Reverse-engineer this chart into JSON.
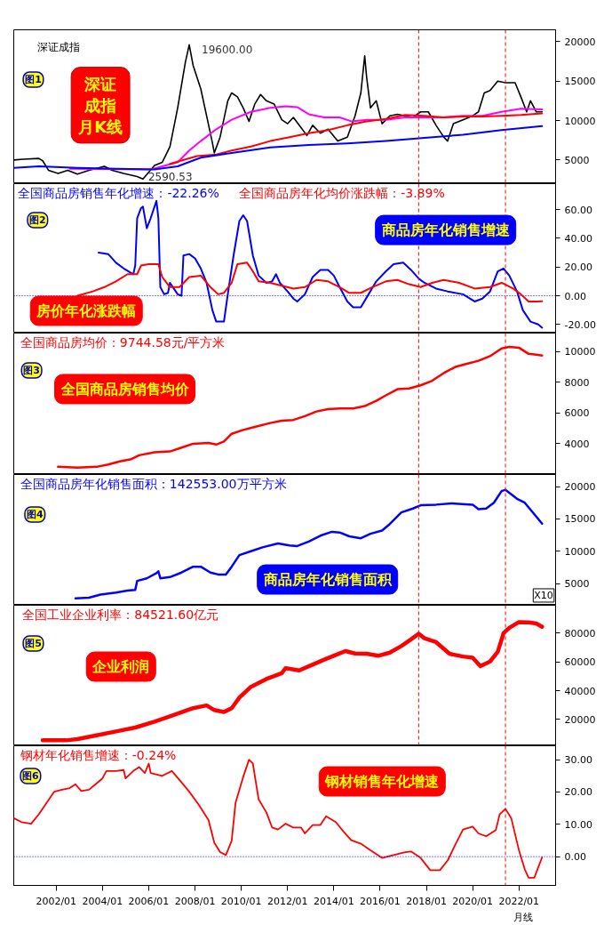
{
  "chart_data": [
    {
      "type": "line",
      "legend": "top left",
      "tick_labels": "y",
      "xlim": [
        "2000-03",
        "2023-08"
      ],
      "ylim": [
        2000,
        21500
      ],
      "yticks": [
        5000,
        10000,
        15000,
        20000
      ],
      "series": [
        {
          "name": "深证成指",
          "color": "#000000",
          "x": [
            "2000-03",
            "2000-08",
            "2001-04",
            "2001-06",
            "2001-09",
            "2002-02",
            "2002-07",
            "2002-12",
            "2003-06",
            "2004-02",
            "2004-06",
            "2004-12",
            "2005-07",
            "2005-10",
            "2006-04",
            "2006-08",
            "2006-12",
            "2007-04",
            "2007-08",
            "2007-10",
            "2007-12",
            "2008-04",
            "2008-07",
            "2008-10",
            "2008-11",
            "2009-02",
            "2009-06",
            "2009-08",
            "2009-11",
            "2010-02",
            "2010-05",
            "2010-08",
            "2010-11",
            "2011-02",
            "2011-06",
            "2011-10",
            "2012-01",
            "2012-04",
            "2012-08",
            "2012-11",
            "2013-02",
            "2013-06",
            "2013-10",
            "2014-03",
            "2014-08",
            "2014-12",
            "2015-03",
            "2015-05",
            "2015-06",
            "2015-08",
            "2015-11",
            "2016-02",
            "2016-06",
            "2016-10",
            "2017-02",
            "2017-06",
            "2017-10",
            "2018-02",
            "2018-06",
            "2018-10",
            "2018-12",
            "2019-03",
            "2019-08",
            "2020-01",
            "2020-04",
            "2020-07",
            "2020-10",
            "2021-02",
            "2021-06",
            "2021-11",
            "2022-02",
            "2022-05",
            "2022-07",
            "2022-10",
            "2023-01"
          ],
          "values": [
            5000,
            5100,
            5200,
            4900,
            3700,
            3300,
            3700,
            3200,
            3700,
            4200,
            3700,
            3300,
            2900,
            2590.53,
            4300,
            4700,
            6700,
            11600,
            17400,
            19600,
            17000,
            14000,
            10600,
            7200,
            5900,
            7900,
            12500,
            13500,
            13000,
            11600,
            9900,
            12100,
            13300,
            12500,
            12100,
            10100,
            9600,
            10400,
            9100,
            8100,
            9400,
            8400,
            8900,
            7400,
            7900,
            10600,
            13500,
            18200,
            15500,
            11600,
            12500,
            9600,
            10600,
            10800,
            10600,
            10400,
            11100,
            11100,
            9400,
            7900,
            7400,
            9600,
            10100,
            10600,
            11100,
            13500,
            13800,
            15000,
            14800,
            14800,
            13000,
            11100,
            12500,
            11100,
            11100
          ]
        },
        {
          "color": "#ff00ff",
          "x": [
            "2002-08",
            "2006-02",
            "2007-04",
            "2007-10",
            "2008-04",
            "2008-12",
            "2009-08",
            "2010-06",
            "2011-04",
            "2011-12",
            "2012-06",
            "2012-12",
            "2013-08",
            "2014-04",
            "2014-10",
            "2015-06",
            "2016-04",
            "2017-02",
            "2017-12",
            "2018-10",
            "2019-08",
            "2020-06",
            "2021-04",
            "2022-02",
            "2023-01"
          ],
          "values": [
            3900,
            3800,
            4700,
            6200,
            7400,
            8900,
            10100,
            11100,
            11600,
            11800,
            11700,
            10800,
            10400,
            10400,
            9900,
            10100,
            10100,
            10400,
            10400,
            10400,
            10600,
            10600,
            11100,
            11500,
            11400
          ]
        },
        {
          "color": "#ff0000",
          "x": [
            "2006-12",
            "2008-02",
            "2008-12",
            "2009-08",
            "2010-06",
            "2011-04",
            "2012-02",
            "2012-12",
            "2013-10",
            "2014-08",
            "2015-06",
            "2016-04",
            "2017-02",
            "2017-12",
            "2018-10",
            "2019-08",
            "2020-06",
            "2021-04",
            "2022-02",
            "2023-01"
          ],
          "values": [
            4500,
            5500,
            5700,
            6200,
            6700,
            7400,
            7900,
            8400,
            8800,
            9400,
            9900,
            10200,
            10700,
            10600,
            10400,
            10500,
            10500,
            10600,
            10700,
            10900
          ]
        },
        {
          "color": "#0000ff",
          "x": [
            "2000-03",
            "2001-04",
            "2002-12",
            "2004-08",
            "2006-04",
            "2007-04",
            "2008-04",
            "2009-08",
            "2011-04",
            "2012-12",
            "2014-08",
            "2016-04",
            "2017-12",
            "2019-08",
            "2021-04",
            "2023-01"
          ],
          "values": [
            4000,
            4200,
            4000,
            3900,
            3800,
            4200,
            5300,
            5900,
            6600,
            6900,
            7100,
            7400,
            7800,
            8200,
            8800,
            9300
          ]
        }
      ],
      "ref_lines": [
        {
          "axis": "x",
          "value": "2017-09",
          "color": "#ff0000",
          "line_style": "dashed"
        },
        {
          "axis": "x",
          "value": "2021-06",
          "color": "#ff0000",
          "line_style": "dashed"
        }
      ],
      "annotations": [
        "图1",
        "深证成指月K线",
        {
          "text": "19600.00",
          "x": "2007-10",
          "y": 19600
        },
        {
          "text": "2590.53",
          "x": "2005-10",
          "y": 2590.53
        }
      ]
    },
    {
      "type": "line",
      "legend": "top left",
      "tick_labels": "y",
      "xlim": [
        "2000-03",
        "2023-08"
      ],
      "ylim": [
        -26,
        78
      ],
      "yticks": [
        {
          "value": -20,
          "label": "-20.00"
        },
        {
          "value": 0,
          "label": "0.00"
        },
        {
          "value": 20,
          "label": "20.00"
        },
        {
          "value": 40,
          "label": "40.00"
        },
        {
          "value": 60,
          "label": "60.00"
        }
      ],
      "series": [
        {
          "name": "全国商品房销售年化增速：-22.26%",
          "color": "#0000ff",
          "x": [
            "2003-11",
            "2004-04",
            "2004-08",
            "2004-12",
            "2005-05",
            "2005-06",
            "2005-07",
            "2005-09",
            "2005-10",
            "2005-12",
            "2006-02",
            "2006-05",
            "2006-06",
            "2006-07",
            "2006-09",
            "2006-11",
            "2006-12",
            "2007-02",
            "2007-04",
            "2007-06",
            "2007-07",
            "2007-10",
            "2008-01",
            "2008-04",
            "2008-07",
            "2008-10",
            "2008-12",
            "2009-04",
            "2009-06",
            "2009-09",
            "2009-12",
            "2010-02",
            "2010-04",
            "2010-07",
            "2010-10",
            "2011-02",
            "2011-05",
            "2011-07",
            "2011-09",
            "2012-01",
            "2012-04",
            "2012-06",
            "2012-10",
            "2013-02",
            "2013-06",
            "2013-10",
            "2014-01",
            "2014-04",
            "2014-08",
            "2014-11",
            "2015-03",
            "2015-07",
            "2015-11",
            "2016-04",
            "2016-08",
            "2017-01",
            "2017-05",
            "2017-09",
            "2017-12",
            "2018-06",
            "2018-12",
            "2019-08",
            "2020-02",
            "2020-06",
            "2020-10",
            "2021-02",
            "2021-05",
            "2021-08",
            "2021-12",
            "2022-03",
            "2022-07",
            "2022-11",
            "2023-01"
          ],
          "values": [
            30,
            29,
            23,
            19,
            15,
            21,
            54,
            61,
            62,
            47,
            54,
            66,
            54,
            6,
            1,
            2,
            9,
            5,
            1,
            0,
            28,
            29,
            26,
            19,
            9,
            -10,
            -18,
            -18,
            1,
            28,
            52,
            56,
            52,
            28,
            14,
            9,
            10,
            15,
            9,
            3,
            -2,
            -4,
            1,
            13,
            18,
            18,
            14,
            6,
            -4,
            -8,
            -8,
            1,
            10,
            17,
            22,
            23,
            18,
            12,
            9,
            5,
            3,
            1,
            -4,
            -2,
            3,
            17,
            19,
            14,
            3,
            -10,
            -18,
            -20,
            -22.26
          ]
        },
        {
          "name": "全国商品房年化均价涨跌幅：-3.89%",
          "color": "#ff0000",
          "x": [
            "2002-12",
            "2003-08",
            "2004-02",
            "2004-08",
            "2005-02",
            "2005-07",
            "2005-09",
            "2006-01",
            "2006-06",
            "2006-08",
            "2006-12",
            "2007-05",
            "2007-10",
            "2008-04",
            "2008-09",
            "2009-01",
            "2009-04",
            "2009-08",
            "2009-11",
            "2010-04",
            "2010-07",
            "2010-10",
            "2011-04",
            "2011-10",
            "2012-04",
            "2012-10",
            "2013-04",
            "2013-10",
            "2014-04",
            "2014-09",
            "2015-03",
            "2015-09",
            "2016-04",
            "2016-10",
            "2017-04",
            "2017-10",
            "2018-04",
            "2018-10",
            "2019-06",
            "2020-02",
            "2020-10",
            "2021-04",
            "2021-10",
            "2022-02",
            "2022-06",
            "2022-10",
            "2023-01"
          ],
          "values": [
            0,
            3,
            6,
            10,
            15,
            15,
            21,
            22,
            22,
            13,
            6,
            6,
            13,
            14,
            6,
            1,
            2,
            9,
            22,
            23,
            17,
            10,
            9,
            7,
            5,
            6,
            11,
            10,
            6,
            2,
            2,
            6,
            10,
            11,
            8,
            6,
            9,
            11,
            9,
            5,
            6,
            9,
            5,
            1,
            -4,
            -4,
            -3.89
          ]
        }
      ],
      "ref_lines": [
        {
          "axis": "y",
          "value": 0,
          "color": "#0000ff",
          "line_style": "dotted"
        },
        {
          "axis": "x",
          "value": "2017-09",
          "color": "#ff0000",
          "line_style": "dashed"
        },
        {
          "axis": "x",
          "value": "2021-06",
          "color": "#ff0000",
          "line_style": "dashed"
        }
      ],
      "annotations": [
        "图2",
        "商品房年化销售增速",
        "房价年化涨跌幅"
      ]
    },
    {
      "type": "line",
      "legend": "top left",
      "tick_labels": "y",
      "xlim": [
        "2000-03",
        "2023-08"
      ],
      "ylim": [
        2000,
        11200
      ],
      "yticks": [
        4000,
        6000,
        8000,
        10000
      ],
      "series": [
        {
          "name": "全国商品房均价：9744.58元/平方米",
          "color": "#ff0000",
          "x": [
            "2002-02",
            "2002-12",
            "2003-10",
            "2004-04",
            "2004-10",
            "2005-04",
            "2005-08",
            "2006-04",
            "2006-12",
            "2007-06",
            "2007-12",
            "2008-08",
            "2008-12",
            "2009-04",
            "2009-08",
            "2010-02",
            "2010-08",
            "2011-04",
            "2011-10",
            "2012-04",
            "2012-10",
            "2013-04",
            "2013-10",
            "2014-04",
            "2014-11",
            "2015-05",
            "2015-11",
            "2016-04",
            "2016-10",
            "2017-04",
            "2017-10",
            "2018-04",
            "2018-10",
            "2019-04",
            "2019-10",
            "2020-04",
            "2020-10",
            "2021-04",
            "2021-08",
            "2022-01",
            "2022-06",
            "2022-10",
            "2023-01"
          ],
          "values": [
            2500,
            2450,
            2500,
            2650,
            2850,
            3000,
            3250,
            3450,
            3500,
            3750,
            4000,
            4050,
            3950,
            4150,
            4650,
            4900,
            5100,
            5350,
            5500,
            5550,
            5800,
            6100,
            6250,
            6300,
            6300,
            6450,
            6800,
            7150,
            7550,
            7600,
            7800,
            8100,
            8600,
            9000,
            9200,
            9400,
            9700,
            10200,
            10300,
            10250,
            9850,
            9800,
            9744.58
          ]
        }
      ],
      "ref_lines": [
        {
          "axis": "x",
          "value": "2017-09",
          "color": "#ff0000",
          "line_style": "dashed"
        },
        {
          "axis": "x",
          "value": "2021-06",
          "color": "#ff0000",
          "line_style": "dashed"
        }
      ],
      "annotations": [
        "图3",
        "全国商品房销售均价"
      ]
    },
    {
      "type": "line",
      "legend": "top left",
      "tick_labels": "y",
      "xlim": [
        "2000-03",
        "2023-08"
      ],
      "ylim": [
        1640,
        21860
      ],
      "yticks": [
        5000,
        10000,
        15000,
        20000
      ],
      "series": [
        {
          "name": "全国商品房年化销售面积：142553.00万平方米",
          "color": "#0000ff",
          "x": [
            "2002-11",
            "2003-06",
            "2003-12",
            "2004-08",
            "2005-02",
            "2005-06",
            "2005-07",
            "2005-12",
            "2006-05",
            "2006-06",
            "2006-07",
            "2006-12",
            "2007-06",
            "2007-12",
            "2008-04",
            "2008-09",
            "2009-01",
            "2009-05",
            "2009-08",
            "2009-12",
            "2010-06",
            "2010-12",
            "2011-08",
            "2012-02",
            "2012-06",
            "2012-12",
            "2013-06",
            "2013-12",
            "2014-04",
            "2014-09",
            "2015-03",
            "2015-08",
            "2016-02",
            "2016-06",
            "2016-12",
            "2017-06",
            "2017-10",
            "2018-06",
            "2019-02",
            "2020-01",
            "2020-04",
            "2020-08",
            "2020-12",
            "2021-04",
            "2021-06",
            "2021-12",
            "2022-04",
            "2022-09",
            "2023-01"
          ],
          "values": [
            2700,
            2800,
            3300,
            3600,
            3900,
            4000,
            5400,
            5800,
            6600,
            6900,
            5800,
            6000,
            6700,
            7600,
            7600,
            6700,
            6400,
            6400,
            7600,
            9400,
            10000,
            10600,
            11200,
            10900,
            10800,
            11500,
            12400,
            13000,
            12900,
            12300,
            12000,
            12700,
            13200,
            14200,
            16000,
            16600,
            17100,
            17200,
            17400,
            17200,
            16500,
            16600,
            17500,
            19300,
            19500,
            18100,
            17500,
            15700,
            14255.3
          ]
        }
      ],
      "ref_lines": [
        {
          "axis": "x",
          "value": "2017-09",
          "color": "#ff0000",
          "line_style": "dashed"
        },
        {
          "axis": "x",
          "value": "2021-06",
          "color": "#ff0000",
          "line_style": "dashed"
        }
      ],
      "annotations": [
        "图4",
        "商品房年化销售面积",
        "X10"
      ]
    },
    {
      "type": "line",
      "legend": "top left",
      "tick_labels": "y",
      "xlim": [
        "2000-03",
        "2023-08"
      ],
      "ylim": [
        1600,
        99500
      ],
      "yticks": [
        20000,
        40000,
        60000,
        80000
      ],
      "series": [
        {
          "name": "全国工业企业利率：84521.60亿元",
          "color": "#ff0000",
          "x": [
            "2001-06",
            "2002-06",
            "2002-12",
            "2003-10",
            "2004-08",
            "2005-06",
            "2006-04",
            "2007-02",
            "2007-12",
            "2008-07",
            "2008-11",
            "2009-04",
            "2009-08",
            "2009-12",
            "2010-06",
            "2011-02",
            "2011-10",
            "2011-12",
            "2012-07",
            "2012-12",
            "2013-08",
            "2014-02",
            "2014-07",
            "2014-12",
            "2015-06",
            "2015-12",
            "2016-06",
            "2016-12",
            "2017-05",
            "2017-09",
            "2017-12",
            "2018-06",
            "2019-01",
            "2019-08",
            "2020-01",
            "2020-05",
            "2020-10",
            "2021-02",
            "2021-05",
            "2021-08",
            "2022-01",
            "2022-06",
            "2022-10",
            "2023-01"
          ],
          "values": [
            5400,
            5400,
            6200,
            8900,
            11600,
            14300,
            18400,
            23000,
            27800,
            29700,
            26500,
            25100,
            27800,
            35100,
            42700,
            48100,
            52200,
            55700,
            54100,
            57000,
            61600,
            64900,
            67600,
            65900,
            65700,
            64300,
            66500,
            71100,
            75700,
            79700,
            76500,
            73800,
            65700,
            63800,
            63000,
            57000,
            60300,
            67000,
            80000,
            83800,
            87800,
            87600,
            86800,
            84521.6
          ]
        }
      ],
      "ref_lines": [
        {
          "axis": "x",
          "value": "2017-09",
          "color": "#ff0000",
          "line_style": "dashed"
        },
        {
          "axis": "x",
          "value": "2021-06",
          "color": "#ff0000",
          "line_style": "dashed"
        }
      ],
      "annotations": [
        "图5",
        "企业利润"
      ]
    },
    {
      "type": "line",
      "legend": "top left",
      "xlim": [
        "2000-03",
        "2023-08"
      ],
      "ylim": [
        -8.9,
        34.3
      ],
      "yticks": [
        {
          "value": 0,
          "label": "0.00"
        },
        {
          "value": 10,
          "label": "10.00"
        },
        {
          "value": 20,
          "label": "20.00"
        },
        {
          "value": 30,
          "label": "30.00"
        }
      ],
      "xticks": [
        {
          "value": "2002-01",
          "label": "2002/01"
        },
        {
          "value": "2004-01",
          "label": "2004/01"
        },
        {
          "value": "2006-01",
          "label": "2006/01"
        },
        {
          "value": "2008-01",
          "label": "2008/01"
        },
        {
          "value": "2010-01",
          "label": "2010/01"
        },
        {
          "value": "2012-01",
          "label": "2012/01"
        },
        {
          "value": "2014-01",
          "label": "2014/01"
        },
        {
          "value": "2016-01",
          "label": "2016/01"
        },
        {
          "value": "2018-01",
          "label": "2018/01"
        },
        {
          "value": "2020-01",
          "label": "2020/01"
        },
        {
          "value": "2022-01",
          "label": "2022/01"
        }
      ],
      "series": [
        {
          "name": "钢材年化销售增速：-0.24%",
          "color": "#ff0000",
          "x": [
            "2000-03",
            "2000-07",
            "2000-12",
            "2001-04",
            "2001-08",
            "2001-12",
            "2002-04",
            "2002-08",
            "2002-11",
            "2003-02",
            "2003-06",
            "2003-09",
            "2004-01",
            "2004-03",
            "2004-08",
            "2004-12",
            "2005-01",
            "2005-05",
            "2005-08",
            "2005-11",
            "2006-01",
            "2006-02",
            "2006-08",
            "2007-01",
            "2007-06",
            "2007-10",
            "2008-03",
            "2008-08",
            "2008-11",
            "2009-02",
            "2009-05",
            "2009-08",
            "2009-10",
            "2010-02",
            "2010-05",
            "2010-07",
            "2010-10",
            "2011-02",
            "2011-05",
            "2011-08",
            "2011-12",
            "2012-04",
            "2012-08",
            "2012-10",
            "2013-02",
            "2013-06",
            "2013-09",
            "2014-02",
            "2014-06",
            "2014-10",
            "2015-03",
            "2015-08",
            "2016-02",
            "2016-08",
            "2017-02",
            "2017-05",
            "2017-10",
            "2018-03",
            "2018-08",
            "2018-12",
            "2019-04",
            "2019-08",
            "2020-01",
            "2020-04",
            "2020-08",
            "2021-01",
            "2021-03",
            "2021-06",
            "2021-09",
            "2022-01",
            "2022-04",
            "2022-06",
            "2022-09",
            "2022-11",
            "2023-01"
          ],
          "values": [
            11.9,
            10.7,
            10.2,
            13.1,
            16.6,
            20.1,
            20.7,
            21.2,
            22.4,
            20.3,
            20.7,
            22.2,
            24.2,
            26.5,
            26.5,
            26.8,
            24.2,
            26.5,
            27.7,
            25.9,
            28.8,
            25.9,
            25,
            26.5,
            23,
            20.1,
            16,
            11.3,
            4.3,
            1.4,
            0.5,
            4.9,
            16.6,
            24.7,
            30,
            28.8,
            17.7,
            13.7,
            9,
            8.4,
            10.2,
            9,
            9,
            7.2,
            9.8,
            9.8,
            12.5,
            10.7,
            7.8,
            5.1,
            4,
            2,
            -0.4,
            0.5,
            1.4,
            1.6,
            -0.4,
            -4.2,
            -4.2,
            -1.2,
            3.7,
            8.4,
            9.3,
            7.2,
            6.3,
            8.2,
            13.1,
            14.8,
            11.9,
            2,
            -3.9,
            -6.5,
            -6.5,
            -3.3,
            -0.24
          ]
        }
      ],
      "ref_lines": [
        {
          "axis": "y",
          "value": 0,
          "color": "#0000ff",
          "line_style": "dotted"
        },
        {
          "axis": "x",
          "value": "2021-06",
          "color": "#ff0000",
          "line_style": "dashed"
        }
      ],
      "annotations": [
        "图6",
        "钢材销售年化增速",
        "月线"
      ]
    }
  ]
}
